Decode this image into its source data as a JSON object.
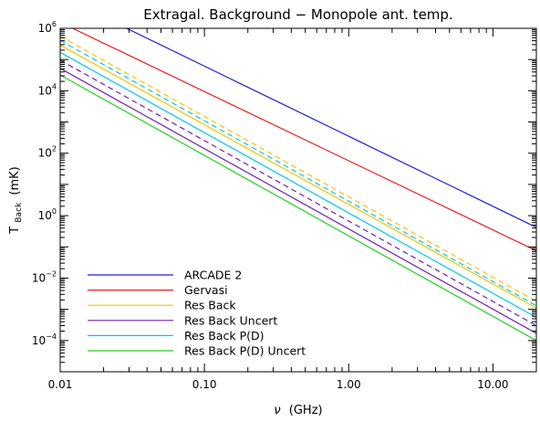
{
  "chart_data": {
    "type": "line",
    "title": "Extragal. Background − Monopole ant. temp.",
    "xlabel": {
      "symbol": "ν",
      "unit": "(GHz)"
    },
    "ylabel": {
      "base": "T",
      "subscript": "Back",
      "unit": "(mK)"
    },
    "xscale": "log",
    "yscale": "log",
    "xlim": [
      0.01,
      20
    ],
    "ylim": [
      1e-05,
      1000000
    ],
    "x_ticks": [
      {
        "value": 0.01,
        "label": "0.01"
      },
      {
        "value": 0.1,
        "label": "0.10"
      },
      {
        "value": 1,
        "label": "1.00"
      },
      {
        "value": 10,
        "label": "10.00"
      }
    ],
    "y_ticks": [
      {
        "value": 0.0001,
        "base": "10",
        "exp": "−4"
      },
      {
        "value": 0.01,
        "base": "10",
        "exp": "−2"
      },
      {
        "value": 1,
        "base": "10",
        "exp": "0"
      },
      {
        "value": 100,
        "base": "10",
        "exp": "2"
      },
      {
        "value": 10000,
        "base": "10",
        "exp": "4"
      },
      {
        "value": 1000000,
        "base": "10",
        "exp": "6"
      }
    ],
    "grid": false,
    "legend_position": "bottom-left",
    "series": [
      {
        "name": "ARCADE 2",
        "color": "#1d1dd6",
        "style": "solid",
        "x": [
          0.01,
          20
        ],
        "y": [
          10800000,
          0.42
        ]
      },
      {
        "name": "Gervasi",
        "color": "#e82020",
        "style": "solid",
        "x": [
          0.01,
          20
        ],
        "y": [
          1550000,
          0.075
        ]
      },
      {
        "name": "Res Back",
        "color": "#f5c400",
        "style": "solid",
        "x": [
          0.01,
          20
        ],
        "y": [
          290000,
          0.0011
        ]
      },
      {
        "name": "",
        "color": "#f5c400",
        "style": "dashed",
        "x": [
          0.01,
          20
        ],
        "y": [
          560000,
          0.0018
        ]
      },
      {
        "name": "",
        "color": "#00c8e6",
        "style": "dashed",
        "x": [
          0.01,
          20
        ],
        "y": [
          410000,
          0.0013
        ]
      },
      {
        "name": "Res Back P(D)",
        "color": "#00c8e6",
        "style": "solid",
        "x": [
          0.01,
          20
        ],
        "y": [
          170000,
          0.00055
        ]
      },
      {
        "name": "",
        "color": "#7020b0",
        "style": "dashed",
        "x": [
          0.01,
          20
        ],
        "y": [
          95000,
          0.0003
        ]
      },
      {
        "name": "Res Back Uncert",
        "color": "#7020b0",
        "style": "solid",
        "x": [
          0.01,
          20
        ],
        "y": [
          52000,
          0.00017
        ]
      },
      {
        "name": "Res Back P(D) Uncert",
        "color": "#20d020",
        "style": "solid",
        "x": [
          0.01,
          20
        ],
        "y": [
          32000,
          0.0001
        ]
      }
    ],
    "legend": [
      {
        "name": "ARCADE 2",
        "color": "#1d1dd6"
      },
      {
        "name": "Gervasi",
        "color": "#e82020"
      },
      {
        "name": "Res Back",
        "color": "#f5c400"
      },
      {
        "name": "Res Back Uncert",
        "color": "#7020b0"
      },
      {
        "name": "Res Back P(D)",
        "color": "#00c8e6"
      },
      {
        "name": "Res Back P(D) Uncert",
        "color": "#20d020"
      }
    ]
  }
}
